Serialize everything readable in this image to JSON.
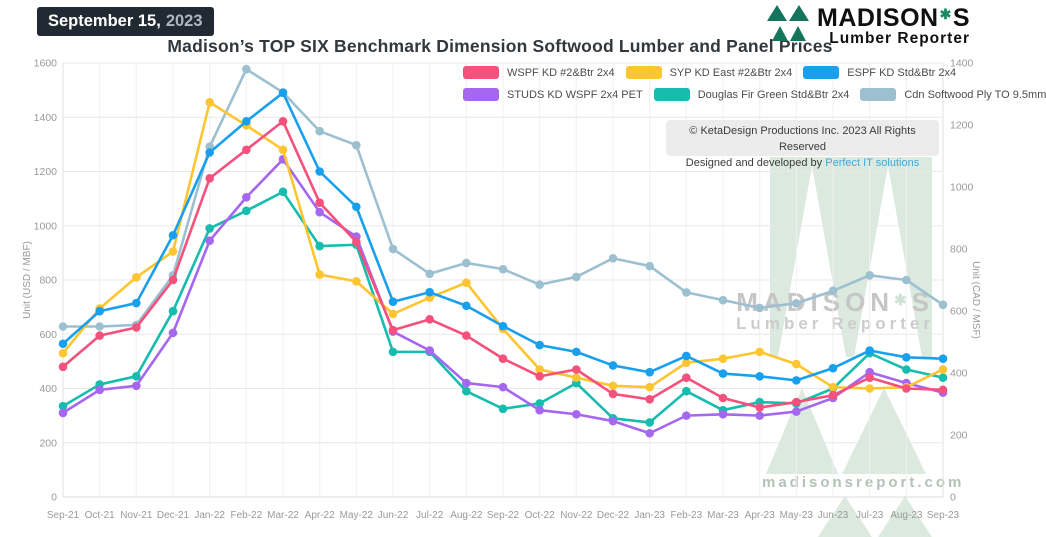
{
  "header": {
    "date_badge": {
      "date": "September 15,",
      "year": "2023"
    },
    "title": "Madison’s TOP SIX Benchmark Dimension Softwood Lumber and Panel Prices",
    "logo": {
      "name": "MADISON",
      "leaf_glyph": "✱",
      "suffix": "S",
      "subtitle": "Lumber Reporter",
      "green": "#15745c"
    }
  },
  "copyright": {
    "line1": "© KetaDesign Productions Inc. 2023 All Rights Reserved",
    "line2_prefix": "Designed and developed by ",
    "line2_link": "Perfect IT solutions"
  },
  "watermark": {
    "brand_prefix": "MADISON",
    "leaf_glyph": "✱",
    "brand_suffix": "S",
    "subtitle": "Lumber Reporter",
    "site": "madisonsreport.com",
    "shape_color": "#dbe9df"
  },
  "chart_data": {
    "type": "line",
    "x": [
      "Sep-21",
      "Oct-21",
      "Nov-21",
      "Dec-21",
      "Jan-22",
      "Feb-22",
      "Mar-22",
      "Apr-22",
      "May-22",
      "Jun-22",
      "Jul-22",
      "Aug-22",
      "Sep-22",
      "Oct-22",
      "Nov-22",
      "Dec-22",
      "Jan-23",
      "Feb-23",
      "Mar-23",
      "Apr-23",
      "May-23",
      "Jun-23",
      "Jul-23",
      "Aug-23",
      "Sep-23"
    ],
    "left_axis": {
      "label": "Unit (USD / MBF)",
      "min": 0,
      "max": 1600,
      "step": 200
    },
    "right_axis": {
      "label": "Unit (CAD / MSF)",
      "min": 0,
      "max": 1400,
      "step": 200
    },
    "grid": true,
    "legend_position": "top",
    "series": [
      {
        "name": "WSPF KD #2&Btr 2x4",
        "color": "#f4517c",
        "axis": "left",
        "values": [
          480,
          595,
          625,
          800,
          1175,
          1280,
          1385,
          1085,
          940,
          615,
          655,
          595,
          510,
          445,
          470,
          380,
          360,
          440,
          365,
          330,
          350,
          375,
          440,
          400,
          395
        ]
      },
      {
        "name": "SYP KD East #2&Btr 2x4",
        "color": "#fdc52f",
        "axis": "left",
        "values": [
          530,
          695,
          810,
          905,
          1455,
          1370,
          1280,
          820,
          795,
          675,
          735,
          790,
          620,
          470,
          440,
          410,
          405,
          495,
          510,
          535,
          490,
          405,
          400,
          405,
          470
        ]
      },
      {
        "name": "ESPF KD Std&Btr 2x4",
        "color": "#18a0ee",
        "axis": "left",
        "values": [
          565,
          685,
          715,
          965,
          1270,
          1385,
          1490,
          1200,
          1070,
          720,
          755,
          705,
          630,
          560,
          535,
          485,
          460,
          520,
          455,
          445,
          430,
          475,
          540,
          515,
          510
        ]
      },
      {
        "name": "STUDS KD WSPF 2x4 PET",
        "color": "#a566f0",
        "axis": "left",
        "values": [
          310,
          395,
          410,
          605,
          945,
          1105,
          1245,
          1050,
          960,
          610,
          540,
          420,
          405,
          320,
          305,
          280,
          235,
          300,
          305,
          300,
          315,
          365,
          460,
          420,
          385
        ]
      },
      {
        "name": "Douglas Fir Green Std&Btr 2x4",
        "color": "#16bcae",
        "axis": "left",
        "values": [
          335,
          415,
          445,
          685,
          990,
          1055,
          1125,
          925,
          930,
          535,
          535,
          390,
          325,
          345,
          420,
          290,
          275,
          390,
          320,
          350,
          345,
          400,
          530,
          470,
          440
        ]
      },
      {
        "name": "Cdn Softwood Ply TO 9.5mm",
        "color": "#9dc0d1",
        "axis": "right",
        "values": [
          550,
          550,
          555,
          715,
          1130,
          1380,
          1305,
          1180,
          1135,
          800,
          720,
          755,
          735,
          685,
          710,
          770,
          745,
          660,
          635,
          610,
          625,
          665,
          715,
          700,
          620
        ]
      }
    ]
  }
}
